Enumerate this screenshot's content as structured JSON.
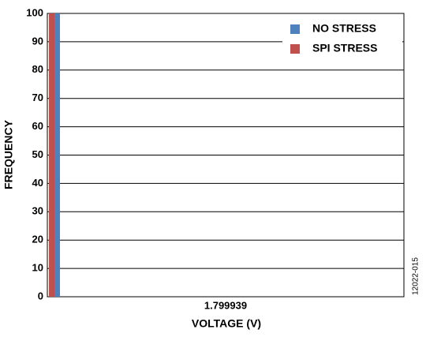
{
  "chart_data": {
    "type": "bar",
    "categories": [
      "1.799939"
    ],
    "series": [
      {
        "name": "SPI STRESS",
        "color": "#c0504d",
        "values": [
          100
        ]
      },
      {
        "name": "NO STRESS",
        "color": "#4f81bd",
        "values": [
          100
        ]
      }
    ],
    "xlabel": "VOLTAGE (V)",
    "ylabel": "FREQUENCY",
    "ylim": [
      0,
      100
    ],
    "yticks": [
      0,
      10,
      20,
      30,
      40,
      50,
      60,
      70,
      80,
      90,
      100
    ],
    "grid": true,
    "legend": "top-right",
    "figure_id": "12022-015"
  }
}
